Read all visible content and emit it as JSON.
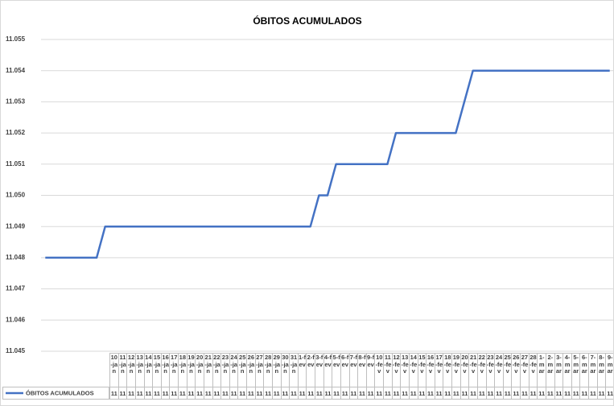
{
  "chart_data": {
    "type": "line",
    "title": "ÓBITOS ACUMULADOS",
    "categories": [
      null,
      null,
      null,
      null,
      null,
      null,
      null,
      null,
      "10-jan",
      "11-jan",
      "12-jan",
      "13-jan",
      "14-jan",
      "15-jan",
      "16-jan",
      "17-jan",
      "18-jan",
      "19-jan",
      "20-jan",
      "21-jan",
      "22-jan",
      "23-jan",
      "24-jan",
      "25-jan",
      "26-jan",
      "27-jan",
      "28-jan",
      "29-jan",
      "30-jan",
      "31-jan",
      "1-fev",
      "2-fev",
      "3-fev",
      "4-fev",
      "5-fev",
      "6-fev",
      "7-fev",
      "8-fev",
      "9-fev",
      "10-fev",
      "11-fev",
      "12-fev",
      "13-fev",
      "14-fev",
      "15-fev",
      "16-fev",
      "17-fev",
      "18-fev",
      "19-fev",
      "20-fev",
      "21-fev",
      "22-fev",
      "23-fev",
      "24-fev",
      "25-fev",
      "26-fev",
      "27-fev",
      "28-fev",
      "1-mar",
      "2-mar",
      "3-mar",
      "4-mar",
      "5-mar",
      "6-mar",
      "7-mar",
      "8-mar",
      "9-mar"
    ],
    "series": [
      {
        "name": "ÓBITOS ACUMULADOS",
        "color": "#4472c4",
        "values": [
          11048,
          11048,
          11048,
          11048,
          11048,
          11048,
          11048,
          11049,
          11049,
          11049,
          11049,
          11049,
          11049,
          11049,
          11049,
          11049,
          11049,
          11049,
          11049,
          11049,
          11049,
          11049,
          11049,
          11049,
          11049,
          11049,
          11049,
          11049,
          11049,
          11049,
          11049,
          11049,
          11050,
          11050,
          11051,
          11051,
          11051,
          11051,
          11051,
          11051,
          11051,
          11052,
          11052,
          11052,
          11052,
          11052,
          11052,
          11052,
          11052,
          11053,
          11054,
          11054,
          11054,
          11054,
          11054,
          11054,
          11054,
          11054,
          11054,
          11054,
          11054,
          11054,
          11054,
          11054,
          11054,
          11054,
          11054
        ],
        "value_labels": [
          null,
          null,
          null,
          null,
          null,
          null,
          null,
          null,
          "11",
          "11",
          "11",
          "11",
          "11",
          "11",
          "11",
          "11",
          "11",
          "11",
          "11",
          "11",
          "11",
          "11",
          "11",
          "11",
          "11",
          "11",
          "11",
          "11",
          "11",
          "11",
          "11",
          "11",
          "11",
          "11",
          "11",
          "11",
          "11",
          "11",
          "11",
          "11",
          "11",
          "11",
          "11",
          "11",
          "11",
          "11",
          "11",
          "11",
          "11",
          "11",
          "11",
          "11",
          "11",
          "11",
          "11",
          "11",
          "11",
          "11",
          "11",
          "11",
          "11",
          "11",
          "11",
          "11",
          "11",
          "11",
          "11"
        ]
      }
    ],
    "ylim": [
      11045,
      11055
    ],
    "yticks": [
      {
        "value": 11045,
        "label": "11.045"
      },
      {
        "value": 11046,
        "label": "11.046"
      },
      {
        "value": 11047,
        "label": "11.047"
      },
      {
        "value": 11048,
        "label": "11.048"
      },
      {
        "value": 11049,
        "label": "11.049"
      },
      {
        "value": 11050,
        "label": "11.050"
      },
      {
        "value": 11051,
        "label": "11.051"
      },
      {
        "value": 11052,
        "label": "11.052"
      },
      {
        "value": 11053,
        "label": "11.053"
      },
      {
        "value": 11054,
        "label": "11.054"
      },
      {
        "value": 11055,
        "label": "11.055"
      }
    ],
    "grid": true
  }
}
